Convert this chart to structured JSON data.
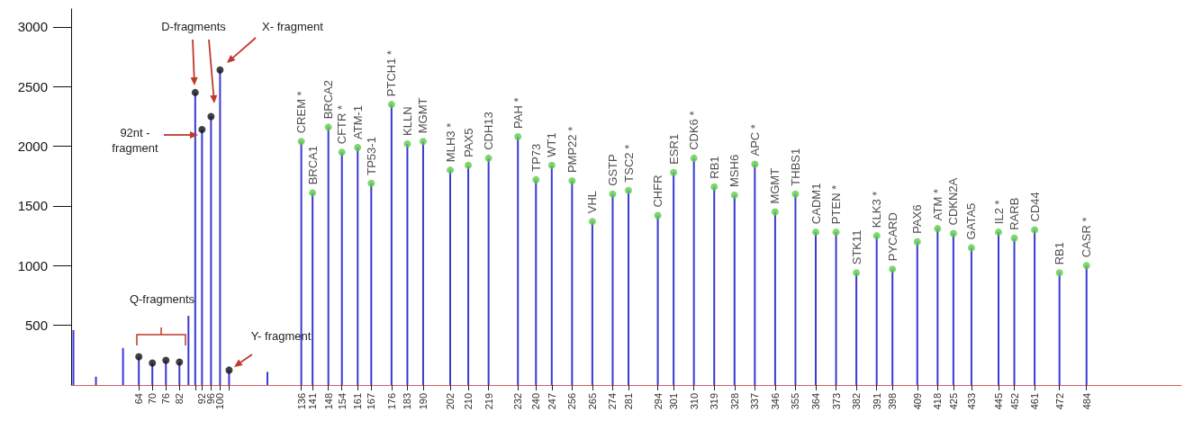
{
  "chart_data": {
    "type": "lollipop",
    "marker": "circle",
    "grid": false,
    "xlim": [
      34,
      526
    ],
    "ylim": [
      0,
      3150
    ],
    "yticks": [
      500,
      1000,
      1500,
      2000,
      2500,
      3000
    ],
    "xticks": [
      64,
      70,
      76,
      82,
      {
        "value": 89,
        "label": null
      },
      92,
      96,
      100,
      {
        "value": 104,
        "label": null
      },
      136,
      141,
      148,
      154,
      161,
      167,
      176,
      183,
      190,
      202,
      210,
      219,
      232,
      240,
      247,
      256,
      265,
      274,
      281,
      294,
      301,
      310,
      319,
      328,
      337,
      346,
      355,
      364,
      373,
      382,
      391,
      398,
      409,
      418,
      425,
      433,
      445,
      452,
      461,
      472,
      484
    ],
    "series": [
      {
        "type": "bar",
        "color": "#3a3ad0",
        "x": [
          35,
          45,
          57,
          86,
          121
        ],
        "values": [
          460,
          70,
          310,
          580,
          110
        ]
      },
      {
        "color": "#3a3ad0",
        "x": [
          64,
          70,
          76,
          82,
          89,
          92,
          96,
          100,
          104,
          136,
          141,
          148,
          154,
          161,
          167,
          176,
          183,
          190,
          202,
          210,
          219,
          232,
          240,
          247,
          256,
          265,
          274,
          281,
          294,
          301,
          310,
          319,
          328,
          337,
          346,
          355,
          364,
          373,
          382,
          391,
          398,
          409,
          418,
          425,
          433,
          445,
          452,
          461,
          472,
          484
        ],
        "values": [
          237,
          185,
          207,
          192,
          2450,
          2140,
          2250,
          2640,
          125,
          2040,
          1610,
          2160,
          1950,
          1990,
          1690,
          2350,
          2020,
          2040,
          1800,
          1840,
          1900,
          2080,
          1720,
          1840,
          1710,
          1370,
          1600,
          1630,
          1420,
          1780,
          1900,
          1660,
          1590,
          1850,
          1450,
          1600,
          1280,
          1280,
          940,
          1250,
          970,
          1200,
          1310,
          1270,
          1150,
          1280,
          1230,
          1300,
          940,
          1000
        ],
        "colors": [
          "#111111",
          "#111111",
          "#111111",
          "#111111",
          "#111111",
          "#111111",
          "#111111",
          "#111111",
          "#111111",
          "#5ccc4a",
          "#5ccc4a",
          "#5ccc4a",
          "#5ccc4a",
          "#5ccc4a",
          "#5ccc4a",
          "#5ccc4a",
          "#5ccc4a",
          "#5ccc4a",
          "#5ccc4a",
          "#5ccc4a",
          "#5ccc4a",
          "#5ccc4a",
          "#5ccc4a",
          "#5ccc4a",
          "#5ccc4a",
          "#5ccc4a",
          "#5ccc4a",
          "#5ccc4a",
          "#5ccc4a",
          "#5ccc4a",
          "#5ccc4a",
          "#5ccc4a",
          "#5ccc4a",
          "#5ccc4a",
          "#5ccc4a",
          "#5ccc4a",
          "#5ccc4a",
          "#5ccc4a",
          "#5ccc4a",
          "#5ccc4a",
          "#5ccc4a",
          "#5ccc4a",
          "#5ccc4a",
          "#5ccc4a",
          "#5ccc4a",
          "#5ccc4a",
          "#5ccc4a",
          "#5ccc4a",
          "#5ccc4a",
          "#5ccc4a"
        ],
        "value_labels": [
          null,
          null,
          null,
          null,
          null,
          null,
          null,
          null,
          null,
          "CREM *",
          "BRCA1",
          "BRCA2",
          "CFTR *",
          "ATM-1",
          "TP53-1",
          "PTCH1 *",
          "KLLN",
          "MGMT",
          "MLH3 *",
          "PAX5",
          "CDH13",
          "PAH *",
          "TP73",
          "WT1",
          "PMP22 *",
          "VHL",
          "GSTP",
          "TSC2 *",
          "CHFR",
          "ESR1",
          "CDK6 *",
          "RB1",
          "MSH6",
          "APC *",
          "MGMT",
          "THBS1",
          "CADM1",
          "PTEN *",
          "STK11",
          "KLK3 *",
          "PYCARD",
          "PAX6",
          "ATM *",
          "CDKN2A",
          "GATA5",
          "IL2 *",
          "RARB",
          "CD44",
          "RB1",
          "CASR *"
        ]
      }
    ],
    "annotations": [
      "Q-fragments",
      "D-fragments",
      "X- fragment",
      "92nt - fragment",
      "Y- fragment"
    ]
  }
}
